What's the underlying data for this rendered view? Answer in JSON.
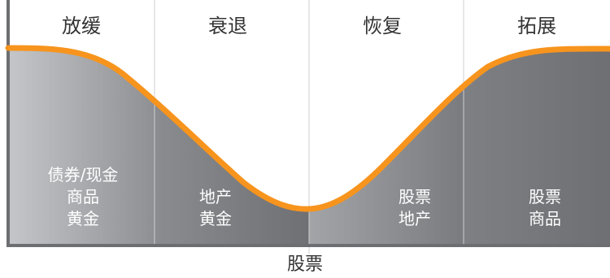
{
  "phases": [
    {
      "title": "放缓",
      "assets": [
        "债券/现金",
        "商品",
        "黄金"
      ]
    },
    {
      "title": "衰退",
      "assets": [
        "地产",
        "黄金"
      ]
    },
    {
      "title": "恢复",
      "assets": [
        "股票",
        "地产"
      ]
    },
    {
      "title": "拓展",
      "assets": [
        "股票",
        "商品"
      ]
    }
  ],
  "footer": "股票",
  "colors": {
    "curve": "#F7941D",
    "fill_light": "#C3C5C8",
    "fill_dark": "#6D6E71",
    "divider": "#D0D0D0",
    "border": "#6D6E71"
  }
}
